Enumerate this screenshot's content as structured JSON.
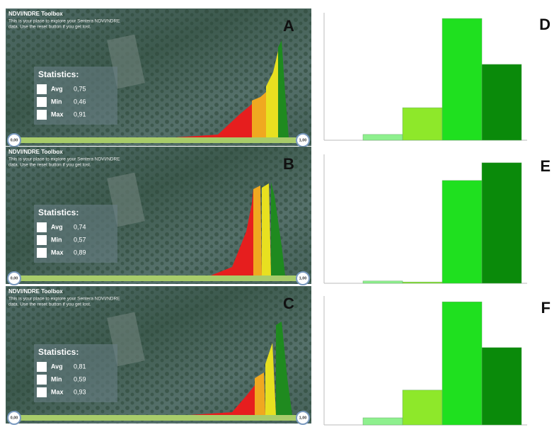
{
  "panels": [
    {
      "label": "A",
      "title": "NDVI/NDRE Toolbox",
      "desc_lines": [
        "This is your place to explore your Sentera NDVI/NDRE",
        "data. Use the reset button if you get lost."
      ],
      "stats_heading": "Statistics:",
      "stats": [
        {
          "name": "Avg",
          "value": "0,75"
        },
        {
          "name": "Min",
          "value": "0,46"
        },
        {
          "name": "Max",
          "value": "0,91"
        }
      ],
      "slider_min": "0,00",
      "slider_max": "1,00"
    },
    {
      "label": "B",
      "title": "NDVI/NDRE Toolbox",
      "desc_lines": [
        "This is your place to explore your Sentera NDVI/NDRE",
        "data. Use the reset button if you get lost."
      ],
      "stats_heading": "Statistics:",
      "stats": [
        {
          "name": "Avg",
          "value": "0,74"
        },
        {
          "name": "Min",
          "value": "0,57"
        },
        {
          "name": "Max",
          "value": "0,89"
        }
      ],
      "slider_min": "0,00",
      "slider_max": "1,00"
    },
    {
      "label": "C",
      "title": "NDVI/NDRE Toolbox",
      "desc_lines": [
        "This is your place to explore your Sentera NDVI/NDRE",
        "data. Use the reset button if you get lost."
      ],
      "stats_heading": "Statistics:",
      "stats": [
        {
          "name": "Avg",
          "value": "0,81"
        },
        {
          "name": "Min",
          "value": "0,59"
        },
        {
          "name": "Max",
          "value": "0,93"
        }
      ],
      "slider_min": "0,00",
      "slider_max": "1,00"
    }
  ],
  "chart_data": [
    {
      "type": "bar",
      "label": "D",
      "values": [
        0.18,
        1.02,
        3.82,
        2.38
      ],
      "colors": [
        "#8ef08e",
        "#8ee82a",
        "#1fe01f",
        "#0a8a0a"
      ],
      "ylim": [
        0,
        4
      ]
    },
    {
      "type": "bar",
      "label": "E",
      "values": [
        0.07,
        0.04,
        3.19,
        3.74
      ],
      "colors": [
        "#8ef08e",
        "#8ee82a",
        "#1fe01f",
        "#0a8a0a"
      ],
      "ylim": [
        0,
        4
      ]
    },
    {
      "type": "bar",
      "label": "F",
      "values": [
        0.22,
        1.08,
        3.82,
        2.4
      ],
      "colors": [
        "#8ef08e",
        "#8ee82a",
        "#1fe01f",
        "#0a8a0a"
      ],
      "ylim": [
        0,
        4
      ]
    }
  ]
}
